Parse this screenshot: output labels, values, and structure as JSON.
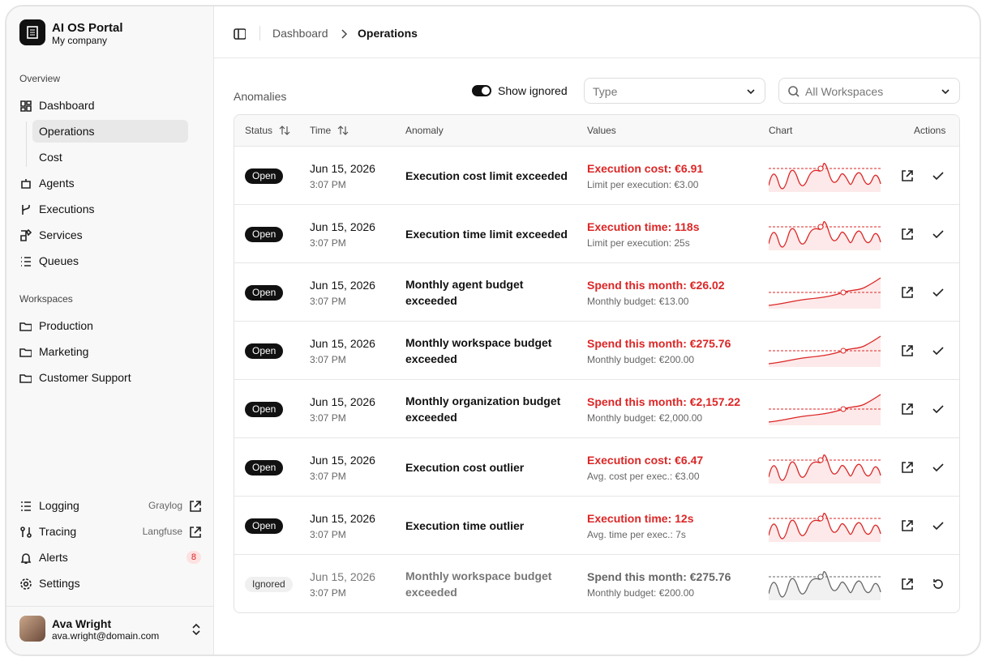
{
  "sidebar": {
    "brand": {
      "title": "AI OS Portal",
      "subtitle": "My company"
    },
    "overview": {
      "heading": "Overview",
      "items": [
        "Dashboard",
        "Operations",
        "Cost",
        "Agents",
        "Executions",
        "Services",
        "Queues"
      ]
    },
    "workspaces": {
      "heading": "Workspaces",
      "items": [
        "Production",
        "Marketing",
        "Customer Support"
      ]
    },
    "tools": {
      "logging": {
        "label": "Logging",
        "link": "Graylog"
      },
      "tracing": {
        "label": "Tracing",
        "link": "Langfuse"
      },
      "alerts": {
        "label": "Alerts",
        "badge": 8
      },
      "settings": {
        "label": "Settings"
      }
    },
    "user": {
      "name": "Ava Wright",
      "email": "ava.wright@domain.com"
    }
  },
  "breadcrumb": [
    "Dashboard",
    "Operations"
  ],
  "anomalies": {
    "title": "Anomalies",
    "toggle_label": "Show ignored",
    "type_placeholder": "Type",
    "workspace_placeholder": "All Workspaces",
    "columns": [
      "Status",
      "Time",
      "Anomaly",
      "Values",
      "Chart",
      "Actions"
    ],
    "rows": [
      {
        "status": "Open",
        "date": "Jun 15, 2026",
        "time": "3:07 PM",
        "anomaly": "Execution cost limit exceeded",
        "value": "Execution cost: €6.91",
        "detail": "Limit per execution: €3.00"
      },
      {
        "status": "Open",
        "date": "Jun 15, 2026",
        "time": "3:07 PM",
        "anomaly": "Execution time limit exceeded",
        "value": "Execution time: 118s",
        "detail": "Limit per execution: 25s"
      },
      {
        "status": "Open",
        "date": "Jun 15, 2026",
        "time": "3:07 PM",
        "anomaly": "Monthly agent budget exceeded",
        "value": "Spend this month: €26.02",
        "detail": "Monthly budget: €13.00"
      },
      {
        "status": "Open",
        "date": "Jun 15, 2026",
        "time": "3:07 PM",
        "anomaly": "Monthly workspace budget exceeded",
        "value": "Spend this month: €275.76",
        "detail": "Monthly budget: €200.00"
      },
      {
        "status": "Open",
        "date": "Jun 15, 2026",
        "time": "3:07 PM",
        "anomaly": "Monthly organization budget exceeded",
        "value": "Spend this month: €2,157.22",
        "detail": "Monthly budget: €2,000.00"
      },
      {
        "status": "Open",
        "date": "Jun 15, 2026",
        "time": "3:07 PM",
        "anomaly": "Execution cost outlier",
        "value": "Execution cost: €6.47",
        "detail": "Avg. cost per exec.: €3.00"
      },
      {
        "status": "Open",
        "date": "Jun 15, 2026",
        "time": "3:07 PM",
        "anomaly": "Execution time outlier",
        "value": "Execution time: 12s",
        "detail": "Avg. time per exec.: 7s"
      },
      {
        "status": "Ignored",
        "date": "Jun 15, 2026",
        "time": "3:07 PM",
        "anomaly": "Monthly workspace budget exceeded",
        "value": "Spend this month: €275.76",
        "detail": "Monthly budget: €200.00"
      }
    ]
  }
}
